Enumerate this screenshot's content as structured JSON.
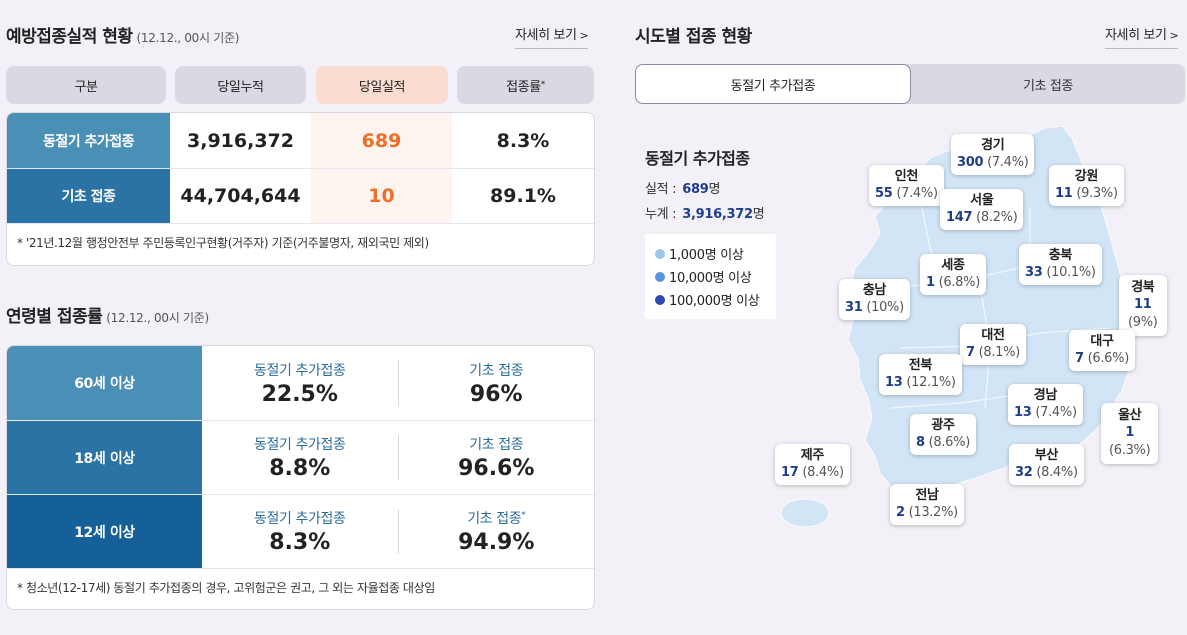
{
  "left": {
    "title": "예방접종실적 현황",
    "title_sub": "(12.12., 00시 기준)",
    "more_label": "자세히 보기",
    "headers": [
      "구분",
      "당일누적",
      "당일실적",
      "접종률"
    ],
    "header_mark": "*",
    "rows": [
      {
        "label": "동절기 추가접종",
        "cumulative": "3,916,372",
        "today": "689",
        "rate": "8.3%"
      },
      {
        "label": "기초 접종",
        "cumulative": "44,704,644",
        "today": "10",
        "rate": "89.1%"
      }
    ],
    "note": "* '21년.12월 행정안전부 주민등록인구현황(거주자) 기준(거주불명자, 재외국민 제외)"
  },
  "age": {
    "title": "연령별 접종률",
    "title_sub": "(12.12., 00시 기준)",
    "rows": [
      {
        "label": "60세 이상",
        "booster_label": "동절기 추가접종",
        "booster": "22.5%",
        "basic_label": "기초 접종",
        "basic_mark": "",
        "basic": "96%"
      },
      {
        "label": "18세 이상",
        "booster_label": "동절기 추가접종",
        "booster": "8.8%",
        "basic_label": "기초 접종",
        "basic_mark": "",
        "basic": "96.6%"
      },
      {
        "label": "12세 이상",
        "booster_label": "동절기 추가접종",
        "booster": "8.3%",
        "basic_label": "기초 접종",
        "basic_mark": "*",
        "basic": "94.9%"
      }
    ],
    "note": "* 청소년(12-17세) 동절기 추가접종의 경우, 고위험군은 권고, 그 외는 자율접종 대상임"
  },
  "regional": {
    "title": "시도별 접종 현황",
    "more_label": "자세히 보기",
    "tabs": [
      {
        "label": "동절기 추가접종",
        "active": true
      },
      {
        "label": "기초 접종",
        "active": false
      }
    ],
    "summary": {
      "title": "동절기 추가접종",
      "perf_label": "실적 :",
      "perf_value": "689",
      "perf_unit": "명",
      "total_label": "누계 :",
      "total_value": "3,916,372",
      "total_unit": "명"
    },
    "legend": [
      {
        "label": "1,000명 이상",
        "color": "#9cc6ea"
      },
      {
        "label": "10,000명 이상",
        "color": "#5b93de"
      },
      {
        "label": "100,000명 이상",
        "color": "#2d48b4"
      }
    ],
    "map_color": "#d2e5f6",
    "regions": [
      {
        "id": "gyeonggi",
        "name": "경기",
        "value": "300",
        "pct": "(7.4%)"
      },
      {
        "id": "incheon",
        "name": "인천",
        "value": "55",
        "pct": "(7.4%)"
      },
      {
        "id": "seoul",
        "name": "서울",
        "value": "147",
        "pct": "(8.2%)"
      },
      {
        "id": "gangwon",
        "name": "강원",
        "value": "11",
        "pct": "(9.3%)"
      },
      {
        "id": "sejong",
        "name": "세종",
        "value": "1",
        "pct": "(6.8%)"
      },
      {
        "id": "chungbuk",
        "name": "충북",
        "value": "33",
        "pct": "(10.1%)"
      },
      {
        "id": "chungnam",
        "name": "충남",
        "value": "31",
        "pct": "(10%)"
      },
      {
        "id": "gyeongbuk",
        "name": "경북",
        "value": "11",
        "pct": "(9%)"
      },
      {
        "id": "daejeon",
        "name": "대전",
        "value": "7",
        "pct": "(8.1%)"
      },
      {
        "id": "daegu",
        "name": "대구",
        "value": "7",
        "pct": "(6.6%)"
      },
      {
        "id": "jeonbuk",
        "name": "전북",
        "value": "13",
        "pct": "(12.1%)"
      },
      {
        "id": "gyeongnam",
        "name": "경남",
        "value": "13",
        "pct": "(7.4%)"
      },
      {
        "id": "ulsan",
        "name": "울산",
        "value": "1",
        "pct": "(6.3%)"
      },
      {
        "id": "gwangju",
        "name": "광주",
        "value": "8",
        "pct": "(8.6%)"
      },
      {
        "id": "jeju",
        "name": "제주",
        "value": "17",
        "pct": "(8.4%)"
      },
      {
        "id": "busan",
        "name": "부산",
        "value": "32",
        "pct": "(8.4%)"
      },
      {
        "id": "jeonnam",
        "name": "전남",
        "value": "2",
        "pct": "(13.2%)"
      }
    ]
  }
}
